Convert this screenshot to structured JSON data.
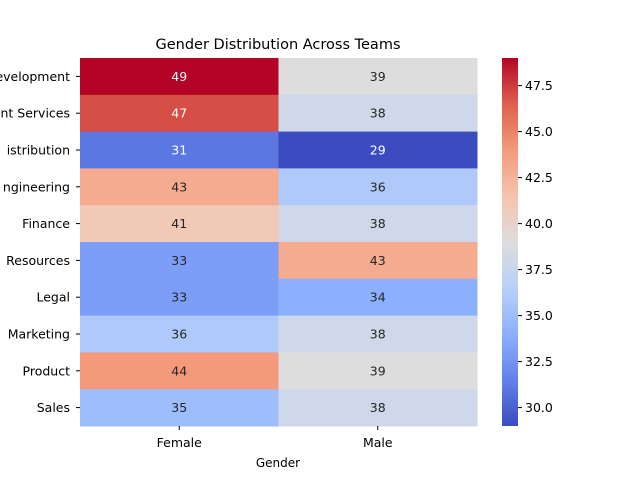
{
  "chart_data": {
    "type": "heatmap",
    "title": "Gender Distribution Across Teams",
    "xlabel": "Gender",
    "ylabel": "",
    "x_categories": [
      "Female",
      "Male"
    ],
    "y_categories": [
      "Development",
      "Client Services",
      "Distribution",
      "Engineering",
      "Finance",
      "Human Resources",
      "Legal",
      "Marketing",
      "Product",
      "Sales"
    ],
    "y_tick_labels_visible": [
      "evelopment",
      "nt Services",
      "istribution",
      "ngineering",
      "Finance",
      "Resources",
      "Legal",
      "Marketing",
      "Product",
      "Sales"
    ],
    "values": [
      [
        49,
        39
      ],
      [
        47,
        38
      ],
      [
        31,
        29
      ],
      [
        43,
        36
      ],
      [
        41,
        38
      ],
      [
        33,
        43
      ],
      [
        33,
        34
      ],
      [
        36,
        38
      ],
      [
        44,
        39
      ],
      [
        35,
        38
      ]
    ],
    "colormap": "coolwarm",
    "vmin": 29,
    "vmax": 49,
    "colorbar_ticks": [
      "30.0",
      "32.5",
      "35.0",
      "37.5",
      "40.0",
      "42.5",
      "45.0",
      "47.5"
    ],
    "colorbar_tick_values": [
      30.0,
      32.5,
      35.0,
      37.5,
      40.0,
      42.5,
      45.0,
      47.5
    ],
    "annotations": true,
    "grid": false,
    "legend": "colorbar-right"
  }
}
